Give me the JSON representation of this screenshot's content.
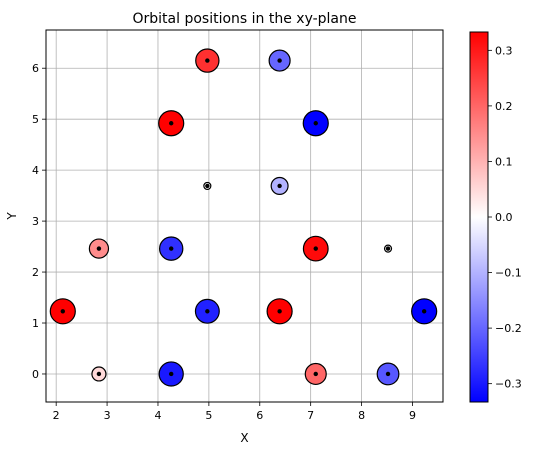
{
  "chart_data": {
    "type": "scatter",
    "title": "Orbital positions in the xy-plane",
    "xlabel": "X",
    "ylabel": "Y",
    "xlim": [
      1.8,
      9.6
    ],
    "ylim": [
      -0.55,
      6.75
    ],
    "xticks": [
      2,
      3,
      4,
      5,
      6,
      7,
      8,
      9
    ],
    "yticks": [
      0,
      1,
      2,
      3,
      4,
      5,
      6
    ],
    "grid": true,
    "colormap": "bwr",
    "clim": [
      -0.333,
      0.333
    ],
    "colorbar_ticks": [
      "0.3",
      "0.2",
      "0.1",
      "0.0",
      "−0.1",
      "−0.2",
      "−0.3"
    ],
    "colorbar_tick_values": [
      0.3,
      0.2,
      0.1,
      0.0,
      -0.1,
      -0.2,
      -0.3
    ],
    "points": [
      {
        "x": 2.13,
        "y": 1.23,
        "value": 0.333
      },
      {
        "x": 2.84,
        "y": 0.0,
        "value": 0.05
      },
      {
        "x": 2.84,
        "y": 2.46,
        "value": 0.15
      },
      {
        "x": 4.26,
        "y": 0.0,
        "value": -0.3
      },
      {
        "x": 4.26,
        "y": 2.46,
        "value": -0.27
      },
      {
        "x": 4.26,
        "y": 4.92,
        "value": 0.333
      },
      {
        "x": 4.97,
        "y": 1.23,
        "value": -0.29
      },
      {
        "x": 4.97,
        "y": 3.69,
        "value": 0.0
      },
      {
        "x": 4.97,
        "y": 6.15,
        "value": 0.27
      },
      {
        "x": 6.39,
        "y": 1.23,
        "value": 0.333
      },
      {
        "x": 6.39,
        "y": 3.69,
        "value": -0.1
      },
      {
        "x": 6.39,
        "y": 6.15,
        "value": -0.2
      },
      {
        "x": 7.1,
        "y": 0.0,
        "value": 0.2
      },
      {
        "x": 7.1,
        "y": 2.46,
        "value": 0.32
      },
      {
        "x": 7.1,
        "y": 4.92,
        "value": -0.333
      },
      {
        "x": 8.52,
        "y": 0.0,
        "value": -0.22
      },
      {
        "x": 8.52,
        "y": 2.46,
        "value": 0.0
      },
      {
        "x": 9.23,
        "y": 1.23,
        "value": -0.333
      }
    ]
  }
}
